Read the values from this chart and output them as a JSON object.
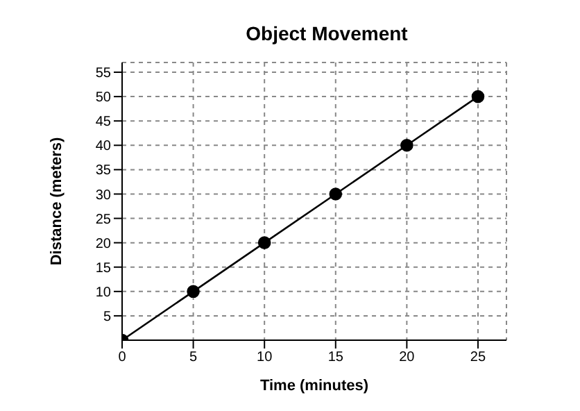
{
  "chart_data": {
    "type": "line",
    "title": "Object Movement",
    "xlabel": "Time (minutes)",
    "ylabel": "Distance (meters)",
    "x": [
      0,
      5,
      10,
      15,
      20,
      25
    ],
    "series": [
      {
        "color": "#000000",
        "values": [
          0,
          10,
          20,
          30,
          40,
          50
        ]
      }
    ],
    "xlim": [
      0,
      27
    ],
    "xticks": [
      0,
      5,
      10,
      15,
      20,
      25
    ],
    "ylim": [
      0,
      57
    ],
    "yticks": [
      5,
      10,
      15,
      20,
      25,
      30,
      35,
      40,
      45,
      50,
      55
    ],
    "grid": true,
    "marker": "circle",
    "line_style": "solid",
    "legend": false
  }
}
